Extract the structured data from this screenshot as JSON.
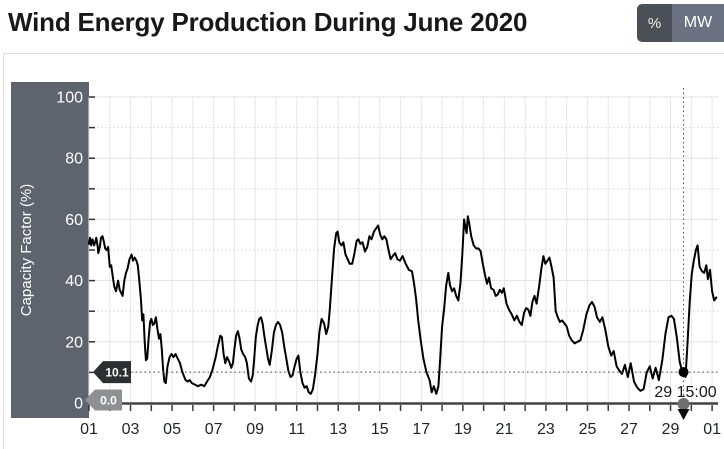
{
  "header": {
    "title": "Wind Energy Production During June 2020",
    "unit_toggle": [
      {
        "label": "%",
        "selected": true
      },
      {
        "label": "MW",
        "selected": false
      }
    ]
  },
  "chart_data": {
    "type": "line",
    "title": "Wind Energy Production During June 2020",
    "xlabel": "",
    "ylabel": "Capacity Factor (%)",
    "ylim": [
      0,
      100
    ],
    "xlim_days": [
      1,
      31.25
    ],
    "grid": true,
    "legend": false,
    "y_major_gridlines": [
      0,
      20,
      40,
      60,
      80,
      100
    ],
    "y_minor_gridlines": [
      10,
      30,
      50,
      70,
      90
    ],
    "y_tick_step": 10,
    "x_tick_days": [
      1,
      3,
      5,
      7,
      9,
      11,
      13,
      15,
      17,
      19,
      21,
      23,
      25,
      27,
      29,
      31
    ],
    "x_tick_labels": [
      "01",
      "03",
      "05",
      "07",
      "09",
      "11",
      "13",
      "15",
      "17",
      "19",
      "21",
      "23",
      "25",
      "27",
      "29",
      "01"
    ],
    "cursor": {
      "day": 29.625,
      "value": 10.1,
      "x_axis_label": "29 15:00",
      "y_axis_label": "10.1",
      "baseline_label": "0.0"
    },
    "series": [
      {
        "name": "Capacity Factor (%)",
        "color": "#000000",
        "points": [
          [
            1.0,
            52
          ],
          [
            1.05,
            54
          ],
          [
            1.1,
            51.5
          ],
          [
            1.17,
            53.5
          ],
          [
            1.24,
            51.5
          ],
          [
            1.3,
            52.5
          ],
          [
            1.35,
            54
          ],
          [
            1.42,
            51
          ],
          [
            1.45,
            49
          ],
          [
            1.52,
            51
          ],
          [
            1.58,
            54
          ],
          [
            1.65,
            54.5
          ],
          [
            1.72,
            52.5
          ],
          [
            1.78,
            50.5
          ],
          [
            1.85,
            50
          ],
          [
            1.92,
            51
          ],
          [
            2.0,
            44.5
          ],
          [
            2.07,
            45
          ],
          [
            2.15,
            41
          ],
          [
            2.22,
            38
          ],
          [
            2.3,
            36.5
          ],
          [
            2.4,
            40
          ],
          [
            2.48,
            37
          ],
          [
            2.55,
            36
          ],
          [
            2.62,
            35
          ],
          [
            2.7,
            40
          ],
          [
            2.78,
            42.5
          ],
          [
            2.86,
            44
          ],
          [
            2.95,
            47
          ],
          [
            3.05,
            48.5
          ],
          [
            3.12,
            46.5
          ],
          [
            3.2,
            47.5
          ],
          [
            3.28,
            46.5
          ],
          [
            3.35,
            45
          ],
          [
            3.42,
            40
          ],
          [
            3.5,
            34
          ],
          [
            3.56,
            27
          ],
          [
            3.62,
            29
          ],
          [
            3.68,
            20
          ],
          [
            3.74,
            14
          ],
          [
            3.8,
            14.5
          ],
          [
            3.87,
            21
          ],
          [
            3.94,
            26.5
          ],
          [
            4.0,
            27.5
          ],
          [
            4.07,
            25.5
          ],
          [
            4.15,
            26
          ],
          [
            4.22,
            28
          ],
          [
            4.3,
            24
          ],
          [
            4.37,
            21
          ],
          [
            4.44,
            22.5
          ],
          [
            4.5,
            18
          ],
          [
            4.57,
            11
          ],
          [
            4.63,
            7
          ],
          [
            4.7,
            6.5
          ],
          [
            4.78,
            12
          ],
          [
            4.88,
            15
          ],
          [
            4.97,
            16
          ],
          [
            5.07,
            15
          ],
          [
            5.17,
            16
          ],
          [
            5.27,
            14.5
          ],
          [
            5.38,
            13
          ],
          [
            5.48,
            10.5
          ],
          [
            5.56,
            9
          ],
          [
            5.65,
            7.5
          ],
          [
            5.75,
            7
          ],
          [
            5.85,
            7.5
          ],
          [
            5.95,
            6.5
          ],
          [
            6.1,
            6
          ],
          [
            6.25,
            5.5
          ],
          [
            6.4,
            6
          ],
          [
            6.55,
            5.5
          ],
          [
            6.68,
            7
          ],
          [
            6.82,
            8.5
          ],
          [
            6.95,
            11
          ],
          [
            7.1,
            15
          ],
          [
            7.2,
            18.5
          ],
          [
            7.32,
            22
          ],
          [
            7.4,
            21.5
          ],
          [
            7.48,
            16
          ],
          [
            7.56,
            13
          ],
          [
            7.65,
            15
          ],
          [
            7.75,
            13.5
          ],
          [
            7.85,
            11.5
          ],
          [
            7.93,
            13
          ],
          [
            8.0,
            17.5
          ],
          [
            8.08,
            22
          ],
          [
            8.17,
            23.5
          ],
          [
            8.25,
            21
          ],
          [
            8.33,
            17.5
          ],
          [
            8.42,
            16
          ],
          [
            8.52,
            15
          ],
          [
            8.6,
            13
          ],
          [
            8.7,
            8
          ],
          [
            8.8,
            7
          ],
          [
            8.88,
            9
          ],
          [
            8.95,
            14
          ],
          [
            9.03,
            21.5
          ],
          [
            9.12,
            25.5
          ],
          [
            9.2,
            27.5
          ],
          [
            9.28,
            28
          ],
          [
            9.36,
            26
          ],
          [
            9.44,
            22
          ],
          [
            9.52,
            18.5
          ],
          [
            9.62,
            14.5
          ],
          [
            9.7,
            12.5
          ],
          [
            9.8,
            17
          ],
          [
            9.9,
            23
          ],
          [
            10.0,
            25.5
          ],
          [
            10.1,
            26.5
          ],
          [
            10.2,
            25.5
          ],
          [
            10.3,
            23
          ],
          [
            10.4,
            18.5
          ],
          [
            10.5,
            14.5
          ],
          [
            10.6,
            10.5
          ],
          [
            10.7,
            8.5
          ],
          [
            10.8,
            9
          ],
          [
            10.9,
            12
          ],
          [
            11.0,
            14.5
          ],
          [
            11.08,
            15.5
          ],
          [
            11.18,
            10
          ],
          [
            11.28,
            6.5
          ],
          [
            11.38,
            5
          ],
          [
            11.48,
            5.5
          ],
          [
            11.58,
            3.5
          ],
          [
            11.68,
            3
          ],
          [
            11.78,
            4.5
          ],
          [
            11.88,
            9
          ],
          [
            12.0,
            16
          ],
          [
            12.1,
            23.5
          ],
          [
            12.2,
            27.5
          ],
          [
            12.32,
            26
          ],
          [
            12.42,
            22.5
          ],
          [
            12.52,
            25
          ],
          [
            12.6,
            31
          ],
          [
            12.7,
            41
          ],
          [
            12.8,
            50.5
          ],
          [
            12.9,
            55.5
          ],
          [
            12.97,
            56
          ],
          [
            13.05,
            52.5
          ],
          [
            13.15,
            51.5
          ],
          [
            13.25,
            52.5
          ],
          [
            13.35,
            48.5
          ],
          [
            13.45,
            47
          ],
          [
            13.55,
            45.5
          ],
          [
            13.67,
            45.5
          ],
          [
            13.77,
            48.5
          ],
          [
            13.89,
            53
          ],
          [
            13.97,
            53.5
          ],
          [
            14.07,
            52
          ],
          [
            14.17,
            52.5
          ],
          [
            14.29,
            49.5
          ],
          [
            14.4,
            51
          ],
          [
            14.5,
            54.5
          ],
          [
            14.6,
            53.5
          ],
          [
            14.72,
            56
          ],
          [
            14.82,
            57
          ],
          [
            14.92,
            58
          ],
          [
            15.02,
            55
          ],
          [
            15.12,
            53.5
          ],
          [
            15.22,
            54.5
          ],
          [
            15.32,
            53.5
          ],
          [
            15.42,
            50
          ],
          [
            15.52,
            47
          ],
          [
            15.62,
            48
          ],
          [
            15.74,
            49
          ],
          [
            15.85,
            47
          ],
          [
            15.97,
            46.5
          ],
          [
            16.1,
            48
          ],
          [
            16.25,
            45.5
          ],
          [
            16.4,
            43.5
          ],
          [
            16.55,
            43
          ],
          [
            16.65,
            39
          ],
          [
            16.75,
            34
          ],
          [
            16.85,
            27
          ],
          [
            16.97,
            20.5
          ],
          [
            17.1,
            14.5
          ],
          [
            17.25,
            10
          ],
          [
            17.4,
            7.5
          ],
          [
            17.5,
            3.5
          ],
          [
            17.6,
            5.5
          ],
          [
            17.72,
            3
          ],
          [
            17.82,
            5.5
          ],
          [
            17.9,
            13.5
          ],
          [
            18.0,
            25
          ],
          [
            18.1,
            31
          ],
          [
            18.2,
            38.5
          ],
          [
            18.3,
            42.5
          ],
          [
            18.38,
            38.5
          ],
          [
            18.48,
            36.5
          ],
          [
            18.58,
            37.5
          ],
          [
            18.68,
            35
          ],
          [
            18.78,
            33.5
          ],
          [
            18.88,
            39
          ],
          [
            18.98,
            49
          ],
          [
            19.06,
            60
          ],
          [
            19.12,
            57.5
          ],
          [
            19.18,
            55.5
          ],
          [
            19.24,
            61
          ],
          [
            19.3,
            59
          ],
          [
            19.4,
            54.5
          ],
          [
            19.52,
            51.5
          ],
          [
            19.64,
            50.5
          ],
          [
            19.76,
            50.5
          ],
          [
            19.86,
            49.5
          ],
          [
            19.96,
            45.5
          ],
          [
            20.06,
            42
          ],
          [
            20.16,
            39
          ],
          [
            20.26,
            41
          ],
          [
            20.36,
            37.5
          ],
          [
            20.48,
            37
          ],
          [
            20.58,
            35
          ],
          [
            20.68,
            35.5
          ],
          [
            20.78,
            37
          ],
          [
            20.88,
            36
          ],
          [
            20.97,
            37.5
          ],
          [
            21.1,
            32.5
          ],
          [
            21.22,
            30.5
          ],
          [
            21.35,
            29
          ],
          [
            21.48,
            27
          ],
          [
            21.6,
            28.5
          ],
          [
            21.72,
            26.5
          ],
          [
            21.84,
            25.5
          ],
          [
            21.95,
            29.5
          ],
          [
            22.05,
            31
          ],
          [
            22.15,
            30.5
          ],
          [
            22.25,
            28.5
          ],
          [
            22.35,
            33
          ],
          [
            22.45,
            35
          ],
          [
            22.55,
            32.5
          ],
          [
            22.68,
            38.5
          ],
          [
            22.78,
            44
          ],
          [
            22.88,
            48
          ],
          [
            22.97,
            45.5
          ],
          [
            23.07,
            46.5
          ],
          [
            23.17,
            47.5
          ],
          [
            23.27,
            44.5
          ],
          [
            23.37,
            41
          ],
          [
            23.47,
            30
          ],
          [
            23.57,
            28
          ],
          [
            23.67,
            26.5
          ],
          [
            23.78,
            27
          ],
          [
            23.89,
            26
          ],
          [
            24.0,
            25
          ],
          [
            24.12,
            22
          ],
          [
            24.24,
            20.5
          ],
          [
            24.38,
            19.5
          ],
          [
            24.52,
            20
          ],
          [
            24.66,
            20.5
          ],
          [
            24.8,
            24
          ],
          [
            24.95,
            29
          ],
          [
            25.1,
            32
          ],
          [
            25.22,
            33
          ],
          [
            25.34,
            31.5
          ],
          [
            25.46,
            28
          ],
          [
            25.6,
            26.5
          ],
          [
            25.72,
            28
          ],
          [
            25.86,
            24
          ],
          [
            26.0,
            18.5
          ],
          [
            26.14,
            15.5
          ],
          [
            26.26,
            17
          ],
          [
            26.4,
            12
          ],
          [
            26.54,
            10.5
          ],
          [
            26.66,
            9.5
          ],
          [
            26.8,
            12.5
          ],
          [
            26.94,
            8.5
          ],
          [
            27.08,
            13
          ],
          [
            27.24,
            7
          ],
          [
            27.4,
            5
          ],
          [
            27.55,
            4
          ],
          [
            27.7,
            4.5
          ],
          [
            27.85,
            10
          ],
          [
            28.0,
            12
          ],
          [
            28.14,
            8
          ],
          [
            28.28,
            11.5
          ],
          [
            28.44,
            7.5
          ],
          [
            28.6,
            14
          ],
          [
            28.75,
            22.5
          ],
          [
            28.9,
            28
          ],
          [
            29.04,
            28.5
          ],
          [
            29.16,
            27.5
          ],
          [
            29.3,
            21.5
          ],
          [
            29.44,
            13.5
          ],
          [
            29.55,
            10.5
          ],
          [
            29.625,
            10.1
          ],
          [
            29.72,
            8.5
          ],
          [
            29.82,
            20
          ],
          [
            29.92,
            33
          ],
          [
            30.02,
            42
          ],
          [
            30.12,
            46.5
          ],
          [
            30.22,
            50
          ],
          [
            30.3,
            51.5
          ],
          [
            30.4,
            44.5
          ],
          [
            30.52,
            43
          ],
          [
            30.62,
            42.5
          ],
          [
            30.72,
            45
          ],
          [
            30.8,
            40.5
          ],
          [
            30.9,
            43.5
          ],
          [
            31.0,
            36.5
          ],
          [
            31.1,
            33.5
          ],
          [
            31.2,
            34.5
          ]
        ]
      }
    ]
  },
  "colors": {
    "axis_band": "#5d646e",
    "axis_band_text": "#ffffff",
    "selected_button_bg": "#4a4f58",
    "selected_button_text": "#f6f1e1",
    "unselected_button_bg": "#6a7180",
    "unselected_button_text": "#ffffff",
    "line": "#000000",
    "grid_major": "#e2e2e2",
    "grid_minor": "#d4d4d4",
    "grid_vertical": "#e7e7e7",
    "axis_line": "#414141",
    "cursor_line": "#4a4a4a",
    "value_tag_bg": "#2e2f31",
    "baseline_tag_bg": "#8e9094",
    "tick_label": "#212529",
    "cursor_time_text": "#17181a",
    "cursor_grip": "#6f6f70"
  }
}
